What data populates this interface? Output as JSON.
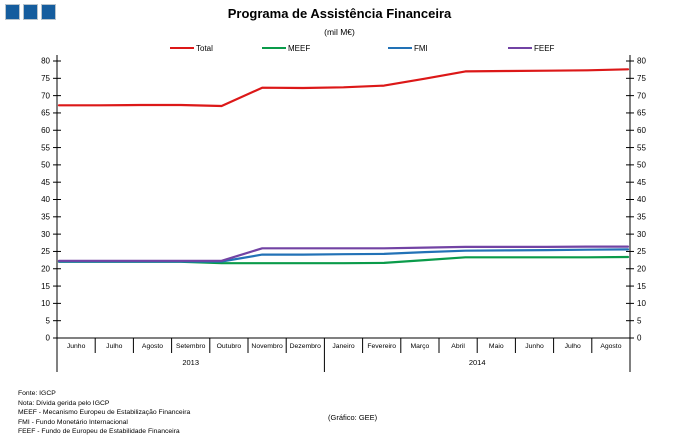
{
  "header": {
    "title": "Programa de Assistência Financeira",
    "subtitle": "(mil M€)"
  },
  "logo": {
    "color": "#155d9e",
    "squares": 3
  },
  "chart_data": {
    "type": "line",
    "x": [
      "Junho",
      "Julho",
      "Agosto",
      "Setembro",
      "Outubro",
      "Novembro",
      "Dezembro",
      "Janeiro",
      "Fevereiro",
      "Março",
      "Abril",
      "Maio",
      "Junho",
      "Julho",
      "Agosto"
    ],
    "year_groups": [
      {
        "label": "2013",
        "months": 7
      },
      {
        "label": "2014",
        "months": 8
      }
    ],
    "title": "Programa de Assistência Financeira",
    "subtitle": "(mil M€)",
    "xlabel": "",
    "ylabel": "",
    "ylim": [
      0,
      80
    ],
    "ytick_step": 5,
    "grid": false,
    "legend_position": "top",
    "dual_y_axis": true,
    "series": [
      {
        "name": "Total",
        "color": "#dc1818",
        "values": [
          67.2,
          67.2,
          67.3,
          67.3,
          67.0,
          72.3,
          72.2,
          72.4,
          72.9,
          74.9,
          77.0,
          77.1,
          77.2,
          77.3,
          77.6
        ]
      },
      {
        "name": "MEEF",
        "color": "#0a9b4a",
        "values": [
          22.0,
          22.0,
          22.0,
          22.0,
          21.6,
          21.6,
          21.6,
          21.6,
          21.7,
          22.5,
          23.3,
          23.3,
          23.3,
          23.3,
          23.4
        ]
      },
      {
        "name": "FMI",
        "color": "#2272b6",
        "values": [
          22.1,
          22.1,
          22.1,
          22.1,
          22.1,
          24.1,
          24.1,
          24.2,
          24.3,
          24.8,
          25.2,
          25.3,
          25.4,
          25.5,
          25.6
        ]
      },
      {
        "name": "FEEF",
        "color": "#7243a4",
        "values": [
          22.3,
          22.3,
          22.3,
          22.3,
          22.3,
          25.9,
          25.9,
          25.9,
          25.9,
          26.1,
          26.3,
          26.3,
          26.3,
          26.4,
          26.4
        ]
      }
    ]
  },
  "footer": {
    "lines": [
      "Fonte: IGCP",
      "Nota: Dívida gerida pelo IGCP",
      "MEEF - Mecanismo Europeu de Estabilização Financeira",
      "FMI - Fundo Monetário Internacional",
      "FEEF - Fundo de Europeu de Estabilidade Financeira"
    ],
    "credit": "(Gráfico: GEE)"
  }
}
